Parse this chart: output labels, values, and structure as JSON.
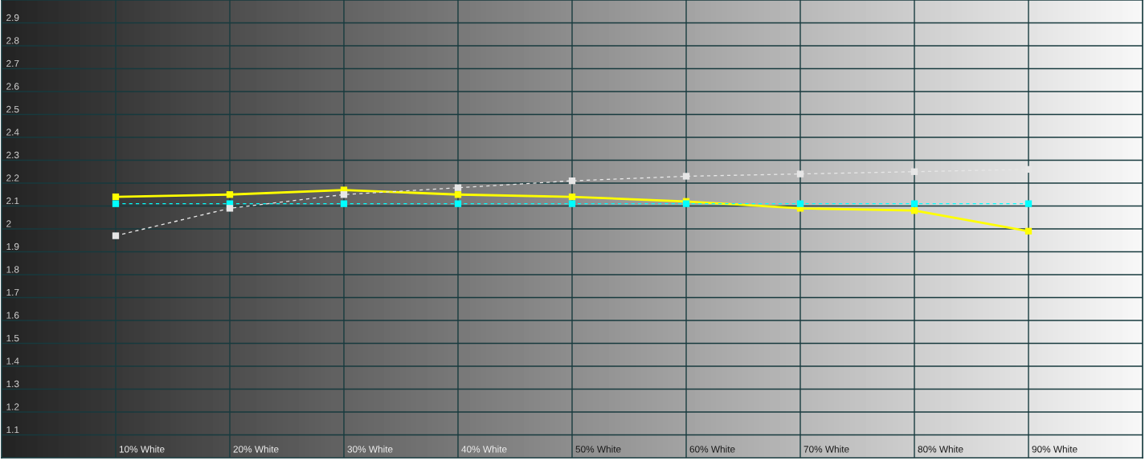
{
  "chart_data": {
    "type": "line",
    "categories": [
      "10% White",
      "20% White",
      "30% White",
      "40% White",
      "50% White",
      "60% White",
      "70% White",
      "80% White",
      "90% White"
    ],
    "series": [
      {
        "color": "#ffff00",
        "line_style": "solid",
        "values": [
          2.14,
          2.15,
          2.17,
          2.15,
          2.14,
          2.12,
          2.09,
          2.08,
          1.99
        ]
      },
      {
        "color": "#00ffff",
        "line_style": "dashed",
        "values": [
          2.11,
          2.11,
          2.11,
          2.11,
          2.11,
          2.11,
          2.11,
          2.11,
          2.11
        ]
      },
      {
        "color": "#e6e6e6",
        "line_style": "dashed",
        "values": [
          1.97,
          2.09,
          2.15,
          2.18,
          2.21,
          2.23,
          2.24,
          2.25,
          2.26
        ]
      }
    ],
    "ylim": [
      1,
      3
    ],
    "yticks": [
      1.1,
      1.2,
      1.3,
      1.4,
      1.5,
      1.6,
      1.7,
      1.8,
      1.9,
      2,
      2.1,
      2.2,
      2.3,
      2.4,
      2.5,
      2.6,
      2.7,
      2.8,
      2.9
    ],
    "grid": true,
    "marker": "square"
  }
}
